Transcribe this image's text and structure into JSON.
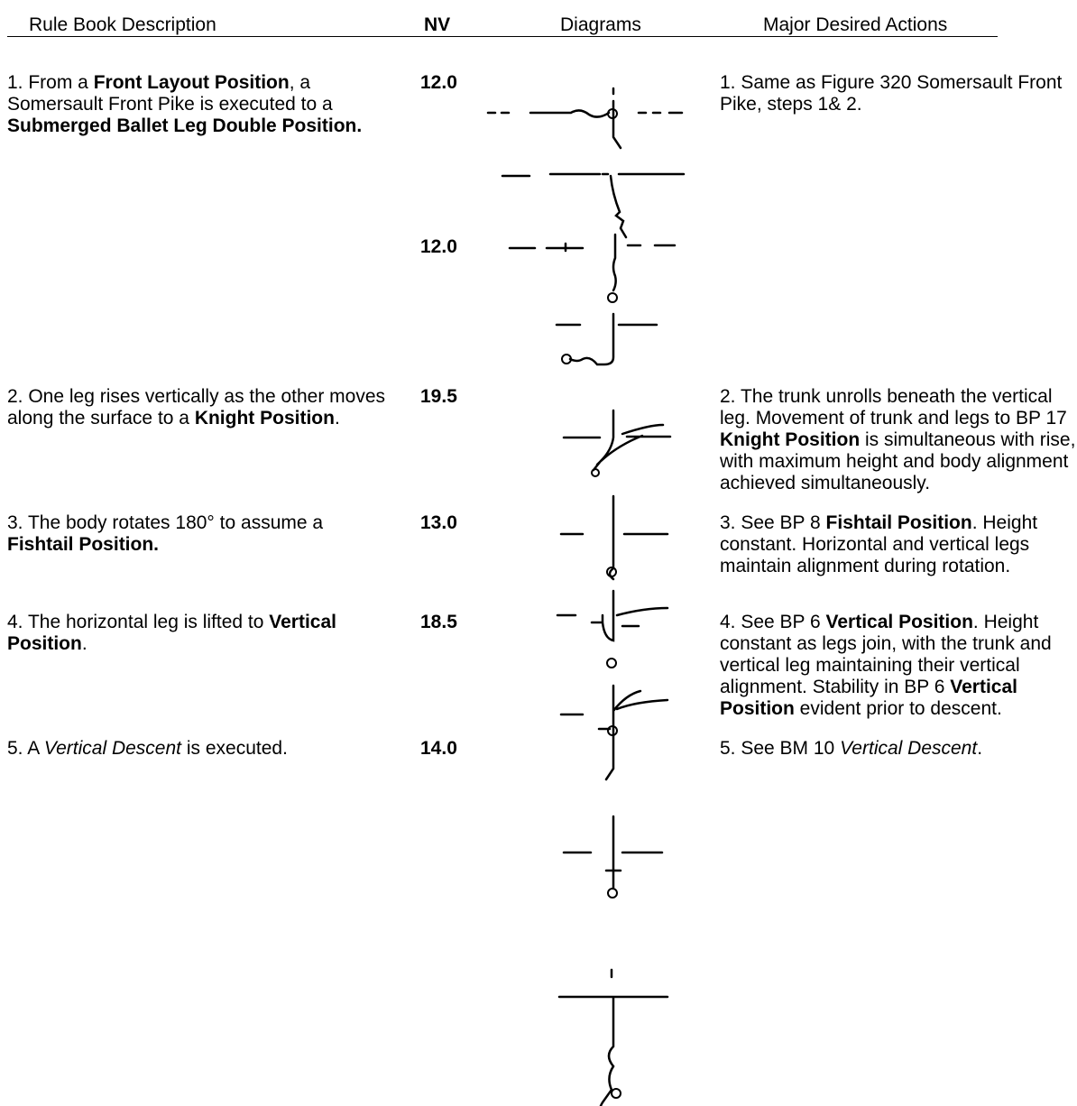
{
  "header": {
    "description": "Rule Book Description",
    "nv": "NV",
    "diagrams": "Diagrams",
    "actions": "Major Desired Actions"
  },
  "rows": [
    {
      "description": [
        {
          "text": "1. From a "
        },
        {
          "text": "Front Layout Position",
          "bold": true
        },
        {
          "text": ", a Somersault Front Pike is executed to a "
        },
        {
          "text": "Submerged Ballet Leg Double Position.",
          "bold": true
        }
      ],
      "nv": [
        "12.0",
        "12.0"
      ],
      "actions": [
        {
          "text": "1. Same as Figure 320 Somersault Front Pike, steps 1& 2."
        }
      ]
    },
    {
      "description": [
        {
          "text": "2.  One leg rises vertically as the other moves along the surface to a "
        },
        {
          "text": "Knight Position",
          "bold": true
        },
        {
          "text": "."
        }
      ],
      "nv": [
        "19.5"
      ],
      "actions": [
        {
          "text": "2. The trunk unrolls beneath the vertical leg.  Movement of trunk and legs to BP 17 "
        },
        {
          "text": "Knight Position",
          "bold": true
        },
        {
          "text": " is simultaneous with rise, with maximum height and body alignment achieved simultaneously."
        }
      ]
    },
    {
      "description": [
        {
          "text": "3.  The body rotates 180° to assume a "
        },
        {
          "text": "Fishtail Position.",
          "bold": true
        }
      ],
      "nv": [
        "13.0"
      ],
      "actions": [
        {
          "text": "3. See BP 8 "
        },
        {
          "text": "Fishtail Position",
          "bold": true
        },
        {
          "text": ". Height constant.  Horizontal and vertical legs maintain alignment during rotation."
        }
      ]
    },
    {
      "description": [
        {
          "text": "4.  The horizontal leg is lifted to "
        },
        {
          "text": "Vertical Position",
          "bold": true
        },
        {
          "text": "."
        }
      ],
      "nv": [
        "18.5"
      ],
      "actions": [
        {
          "text": "4.  See BP 6 "
        },
        {
          "text": "Vertical Position",
          "bold": true
        },
        {
          "text": ". Height constant as legs join, with the trunk and vertical leg maintaining their vertical alignment.  Stability in BP 6 "
        },
        {
          "text": "Vertical Position",
          "bold": true
        },
        {
          "text": " evident prior to descent."
        }
      ]
    },
    {
      "description": [
        {
          "text": "5.  A "
        },
        {
          "text": "Vertical Descent",
          "italic": true
        },
        {
          "text": " is executed."
        }
      ],
      "nv": [
        "14.0"
      ],
      "actions": [
        {
          "text": "5.  See BM 10 "
        },
        {
          "text": "Vertical Descent",
          "italic": true
        },
        {
          "text": "."
        }
      ]
    }
  ]
}
